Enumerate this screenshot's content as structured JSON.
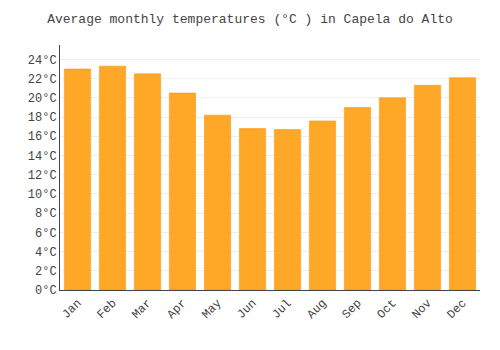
{
  "chart_data": {
    "type": "bar",
    "title": "Average monthly temperatures (°C ) in Capela do Alto",
    "categories": [
      "Jan",
      "Feb",
      "Mar",
      "Apr",
      "May",
      "Jun",
      "Jul",
      "Aug",
      "Sep",
      "Oct",
      "Nov",
      "Dec"
    ],
    "values": [
      23.0,
      23.3,
      22.5,
      20.5,
      18.2,
      16.8,
      16.7,
      17.6,
      19.0,
      20.0,
      21.3,
      22.1
    ],
    "color": "#FFA726",
    "ylim": [
      0,
      25.5
    ],
    "yticks": [
      {
        "value": 0,
        "label": "0°C"
      },
      {
        "value": 2,
        "label": "2°C"
      },
      {
        "value": 4,
        "label": "4°C"
      },
      {
        "value": 6,
        "label": "6°C"
      },
      {
        "value": 8,
        "label": "8°C"
      },
      {
        "value": 10,
        "label": "10°C"
      },
      {
        "value": 12,
        "label": "12°C"
      },
      {
        "value": 14,
        "label": "14°C"
      },
      {
        "value": 16,
        "label": "16°C"
      },
      {
        "value": 18,
        "label": "18°C"
      },
      {
        "value": 20,
        "label": "20°C"
      },
      {
        "value": 22,
        "label": "22°C"
      },
      {
        "value": 24,
        "label": "24°C"
      }
    ],
    "grid": true
  }
}
